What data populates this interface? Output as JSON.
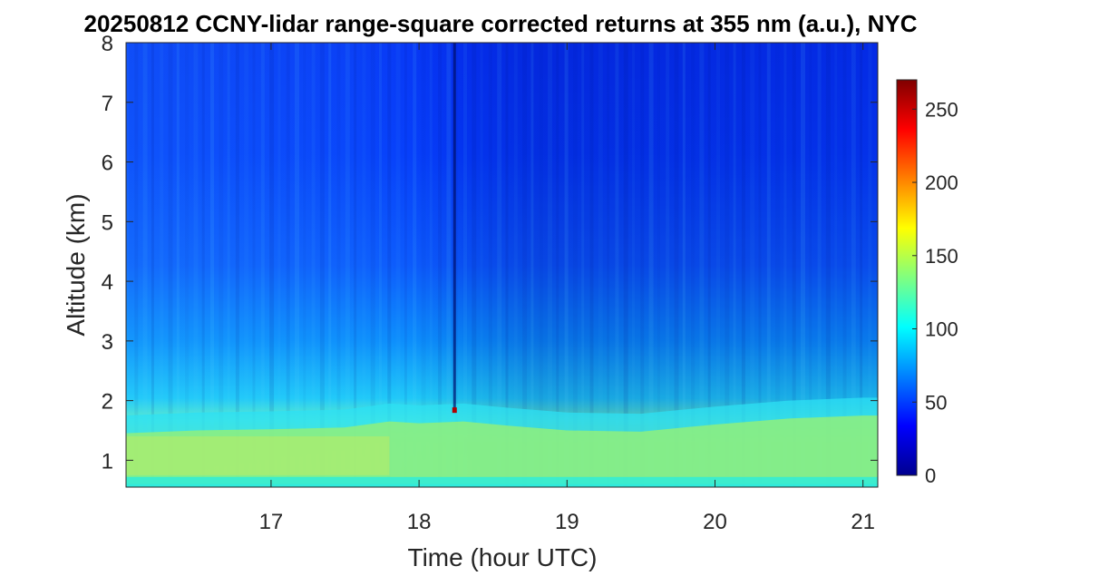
{
  "chart_data": {
    "type": "heatmap",
    "title": "20250812 CCNY-lidar range-square corrected returns at 355 nm (a.u.), NYC",
    "xlabel": "Time (hour UTC)",
    "ylabel": "Altitude (km)",
    "xlim": [
      16.02,
      21.1
    ],
    "ylim": [
      0.55,
      8
    ],
    "x_ticks": [
      17,
      18,
      19,
      20,
      21
    ],
    "y_ticks": [
      1,
      2,
      3,
      4,
      5,
      6,
      7,
      8
    ],
    "colorbar": {
      "ticks": [
        0,
        50,
        100,
        150,
        200,
        250
      ],
      "range": [
        0,
        270
      ],
      "colormap": "jet",
      "colors": [
        "#00008f",
        "#0000ff",
        "#00ffff",
        "#ffff00",
        "#ff0000",
        "#800000"
      ]
    },
    "grid": false,
    "layers": [
      {
        "name": "",
        "altitude_km": [
          0.6,
          1.7
        ],
        "value": 140
      },
      {
        "name": "",
        "altitude_km": [
          1.7,
          3.0
        ],
        "value": 90
      },
      {
        "name": "",
        "altitude_km": [
          3.0,
          8.0
        ],
        "value": 45
      }
    ],
    "features": {
      "boundary_layer_top_km": [
        [
          16.0,
          1.55
        ],
        [
          16.5,
          1.6
        ],
        [
          17.0,
          1.62
        ],
        [
          17.5,
          1.65
        ],
        [
          17.8,
          1.75
        ],
        [
          18.0,
          1.72
        ],
        [
          18.3,
          1.75
        ],
        [
          18.6,
          1.68
        ],
        [
          19.0,
          1.6
        ],
        [
          19.5,
          1.58
        ],
        [
          20.0,
          1.7
        ],
        [
          20.5,
          1.8
        ],
        [
          21.0,
          1.85
        ],
        [
          21.1,
          1.85
        ]
      ],
      "spike": {
        "time": 18.24,
        "altitude_km": 1.84,
        "value": 270
      }
    }
  }
}
